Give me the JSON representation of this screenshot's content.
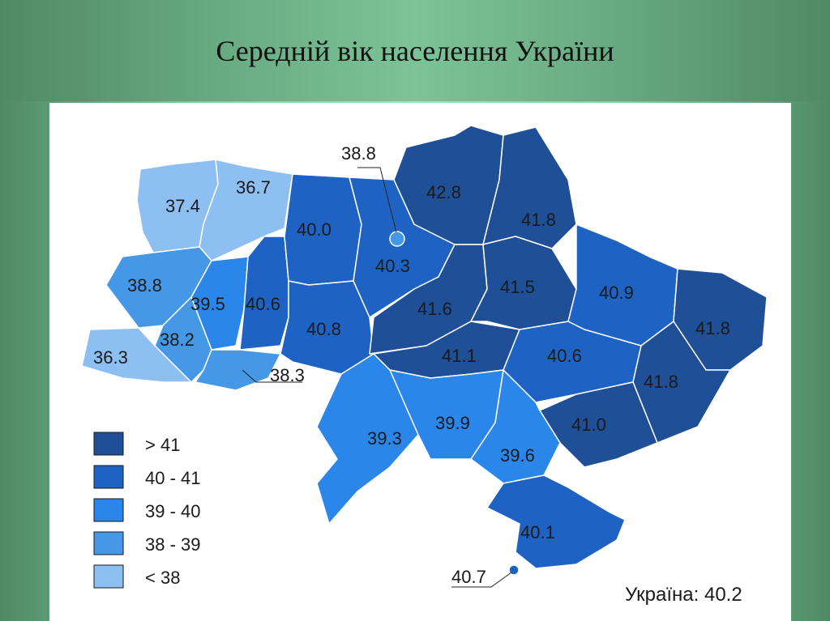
{
  "title": "Середній вік населення України",
  "colors": {
    "gt41": "#1f4f96",
    "r40_41": "#1e63c4",
    "r39_40": "#2b86ea",
    "r38_39": "#4598e6",
    "lt38": "#8ebff2"
  },
  "legend": [
    {
      "label": "> 41",
      "color_key": "gt41"
    },
    {
      "label": "40 - 41",
      "color_key": "r40_41"
    },
    {
      "label": "39 - 40",
      "color_key": "r39_40"
    },
    {
      "label": "38 - 39",
      "color_key": "r38_39"
    },
    {
      "label": "< 38",
      "color_key": "lt38"
    }
  ],
  "regions": [
    {
      "value": "37.4",
      "class": "lt38"
    },
    {
      "value": "36.7",
      "class": "lt38"
    },
    {
      "value": "38.8",
      "class": "r38_39"
    },
    {
      "value": "39.5",
      "class": "r39_40"
    },
    {
      "value": "40.6",
      "class": "r40_41"
    },
    {
      "value": "38.2",
      "class": "r38_39"
    },
    {
      "value": "36.3",
      "class": "lt38"
    },
    {
      "value": "38.3",
      "class": "r38_39"
    },
    {
      "value": "40.0",
      "class": "r40_41"
    },
    {
      "value": "40.8",
      "class": "r40_41"
    },
    {
      "value": "40.3",
      "class": "r40_41"
    },
    {
      "value": "38.8",
      "class": "r38_39"
    },
    {
      "value": "42.8",
      "class": "gt41"
    },
    {
      "value": "41.8",
      "class": "gt41"
    },
    {
      "value": "41.6",
      "class": "gt41"
    },
    {
      "value": "41.5",
      "class": "gt41"
    },
    {
      "value": "41.1",
      "class": "gt41"
    },
    {
      "value": "40.9",
      "class": "r40_41"
    },
    {
      "value": "40.6",
      "class": "r40_41"
    },
    {
      "value": "41.8",
      "class": "gt41"
    },
    {
      "value": "41.8",
      "class": "gt41"
    },
    {
      "value": "41.0",
      "class": "gt41"
    },
    {
      "value": "39.3",
      "class": "r39_40"
    },
    {
      "value": "39.9",
      "class": "r39_40"
    },
    {
      "value": "39.6",
      "class": "r39_40"
    },
    {
      "value": "40.1",
      "class": "r40_41"
    },
    {
      "value": "40.7",
      "class": "r40_41"
    }
  ],
  "total": "Україна: 40.2"
}
